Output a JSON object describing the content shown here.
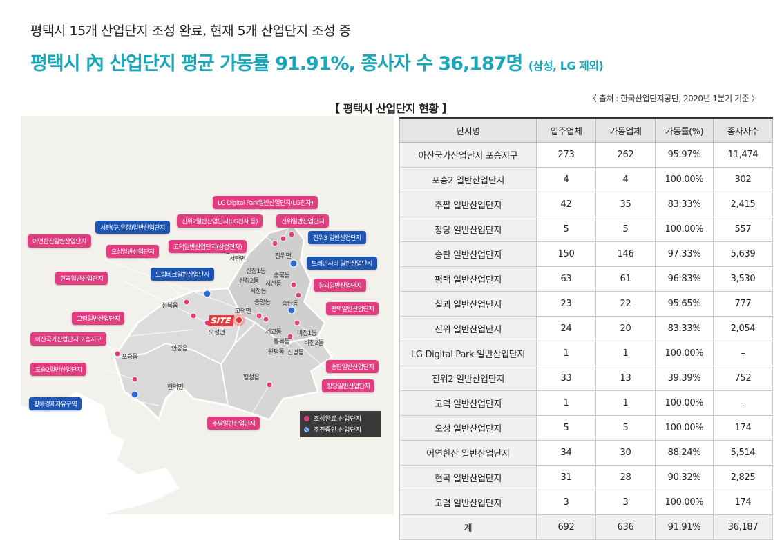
{
  "headline": {
    "line1": "평택시 15개 산업단지 조성 완료, 현재 5개 산업단지 조성 중",
    "line2": "평택시 內 산업단지 평균 가동률 91.91%, 종사자 수 36,187명",
    "line2_note": "(삼성, LG 제외)",
    "accent_color": "#1aa6b7"
  },
  "table_title": "【 평택시 산업단지 현황 】",
  "source": "〈 출처 : 한국산업단지공단, 2020년 1분기 기준 〉",
  "map": {
    "site_label": "SITE",
    "tags": [
      {
        "text": "LG Digital Park일반산업단지(LG전자)",
        "color": "pink"
      },
      {
        "text": "진위2일반산업단지(LG전자 등)",
        "color": "pink"
      },
      {
        "text": "진위일반산업단지",
        "color": "pink"
      },
      {
        "text": "서탄(구,유정)일반산업단지",
        "color": "blue"
      },
      {
        "text": "진위3 일반산업단지",
        "color": "blue"
      },
      {
        "text": "어연한산일반산업단지",
        "color": "pink"
      },
      {
        "text": "오성일반산업단지",
        "color": "pink"
      },
      {
        "text": "고덕일반산업단지(삼성전자)",
        "color": "pink"
      },
      {
        "text": "브레인시티 일반산업단지",
        "color": "blue"
      },
      {
        "text": "현곡일반산업단지",
        "color": "pink"
      },
      {
        "text": "드림테크일반산업단지",
        "color": "blue"
      },
      {
        "text": "칠괴일반산업단지",
        "color": "pink"
      },
      {
        "text": "평택일반산업단지",
        "color": "pink"
      },
      {
        "text": "고렴일반산업단지",
        "color": "pink"
      },
      {
        "text": "아산국가산업단지 포승지구",
        "color": "pink"
      },
      {
        "text": "포승2일반산업단지",
        "color": "pink"
      },
      {
        "text": "송탄일반산업단지",
        "color": "pink"
      },
      {
        "text": "장당일반산업단지",
        "color": "pink"
      },
      {
        "text": "황해경제자유구역",
        "color": "blue"
      },
      {
        "text": "추팔일반산업단지",
        "color": "pink"
      }
    ],
    "places": [
      "서탄면",
      "진위면",
      "신장1동",
      "송북동",
      "신장2동",
      "지산동",
      "서정동",
      "중앙동",
      "송탄동",
      "청북읍",
      "고덕면",
      "오성면",
      "세교동",
      "비전1동",
      "통복동",
      "비전2동",
      "원평동",
      "신평동",
      "안중읍",
      "포승읍",
      "현덕면",
      "팽성읍"
    ],
    "legend": {
      "completed": "조성완료 산업단지",
      "in_progress": "추진중인 산업단지"
    }
  },
  "table": {
    "headers": [
      "단지명",
      "입주업체",
      "가동업체",
      "가동률(%)",
      "종사자수"
    ],
    "rows": [
      [
        "아산국가산업단지 포승지구",
        "273",
        "262",
        "95.97%",
        "11,474"
      ],
      [
        "포승2 일반산업단지",
        "4",
        "4",
        "100.00%",
        "302"
      ],
      [
        "추팔 일반산업단지",
        "42",
        "35",
        "83.33%",
        "2,415"
      ],
      [
        "장당 일반산업단지",
        "5",
        "5",
        "100.00%",
        "557"
      ],
      [
        "송탄 일반산업단지",
        "150",
        "146",
        "97.33%",
        "5,639"
      ],
      [
        "평택 일반산업단지",
        "63",
        "61",
        "96.83%",
        "3,530"
      ],
      [
        "칠괴 일반산업단지",
        "23",
        "22",
        "95.65%",
        "777"
      ],
      [
        "진위 일반산업단지",
        "24",
        "20",
        "83.33%",
        "2,054"
      ],
      [
        "LG Digital Park 일반산업단지",
        "1",
        "1",
        "100.00%",
        "–"
      ],
      [
        "진위2 일반산업단지",
        "33",
        "13",
        "39.39%",
        "752"
      ],
      [
        "고덕 일반산업단지",
        "1",
        "1",
        "100.00%",
        "–"
      ],
      [
        "오성 일반산업단지",
        "5",
        "5",
        "100.00%",
        "174"
      ],
      [
        "어연한산 일반산업단지",
        "34",
        "30",
        "88.24%",
        "5,514"
      ],
      [
        "현곡 일반산업단지",
        "31",
        "28",
        "90.32%",
        "2,825"
      ],
      [
        "고렴 일반산업단지",
        "3",
        "3",
        "100.00%",
        "174"
      ]
    ],
    "total": [
      "계",
      "692",
      "636",
      "91.91%",
      "36,187"
    ]
  }
}
